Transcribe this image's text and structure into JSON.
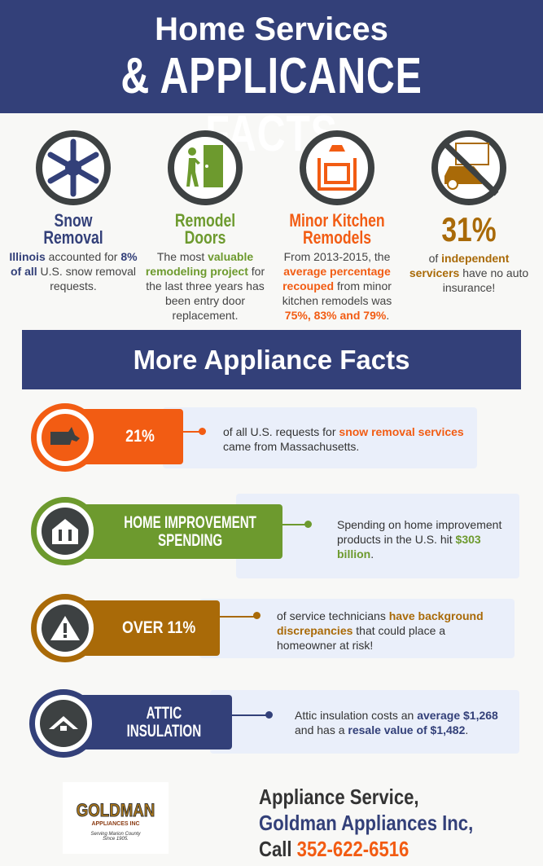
{
  "header": {
    "title_line1": "Home Services",
    "title_line2": "& APPLICANCE FACTS"
  },
  "colors": {
    "navy": "#334079",
    "green": "#6d9a2e",
    "orange": "#f25c13",
    "brown": "#a96a08",
    "ring": "#3d4142"
  },
  "facts": [
    {
      "icon": "snowflake-icon",
      "title1": "Snow",
      "title2": "Removal",
      "t1": "Illinois",
      "t2": " accounted for ",
      "t3": "8% of all",
      "t4": " U.S. snow removal requests."
    },
    {
      "icon": "door-icon",
      "title1": "Remodel",
      "title2": "Doors",
      "t1": "The most ",
      "t2": "valuable remodeling project",
      "t3": " for the last three years has been entry door replacement."
    },
    {
      "icon": "stove-icon",
      "title1": "Minor Kitchen",
      "title2": "Remodels",
      "t1": "From 2013-2015, the ",
      "t2": "average percentage recouped",
      "t3": " from minor kitchen remodels was ",
      "t4": "75%, 83% and 79%",
      "t5": "."
    },
    {
      "icon": "no-insurance-icon",
      "title1": "31%",
      "t1": "of ",
      "t2": "independent servicers",
      "t3": " have no auto insurance!"
    }
  ],
  "banner": "More Appliance Facts",
  "rows": [
    {
      "icon": "massachusetts-map-icon",
      "tab": "21%",
      "a": "of all U.S. requests for ",
      "b": "snow removal services",
      "c": " came from Massachusetts."
    },
    {
      "icon": "house-tools-icon",
      "tab1": "HOME IMPROVEMENT",
      "tab2": "SPENDING",
      "a": "Spending on home improvement products in the U.S. hit ",
      "b": "$303 billion",
      "c": "."
    },
    {
      "icon": "warning-icon",
      "tab": "OVER 11%",
      "a": "of service technicians ",
      "b": "have background discrepancies",
      "c": " that could place a homeowner at risk!"
    },
    {
      "icon": "attic-icon",
      "tab1": "ATTIC",
      "tab2": "INSULATION",
      "a": "Attic insulation costs an ",
      "b": "average $1,268",
      "c": " and has a ",
      "d": "resale value of $1,482",
      "e": "."
    }
  ],
  "logo": {
    "name": "GOLDMAN",
    "sub": "APPLIANCES INC",
    "tag1": "Serving Marion County",
    "tag2": "Since 1905."
  },
  "footer": {
    "line1": "Appliance Service,",
    "line2": "Goldman  Appliances Inc,",
    "call": "Call ",
    "phone": "352-622-6516"
  }
}
